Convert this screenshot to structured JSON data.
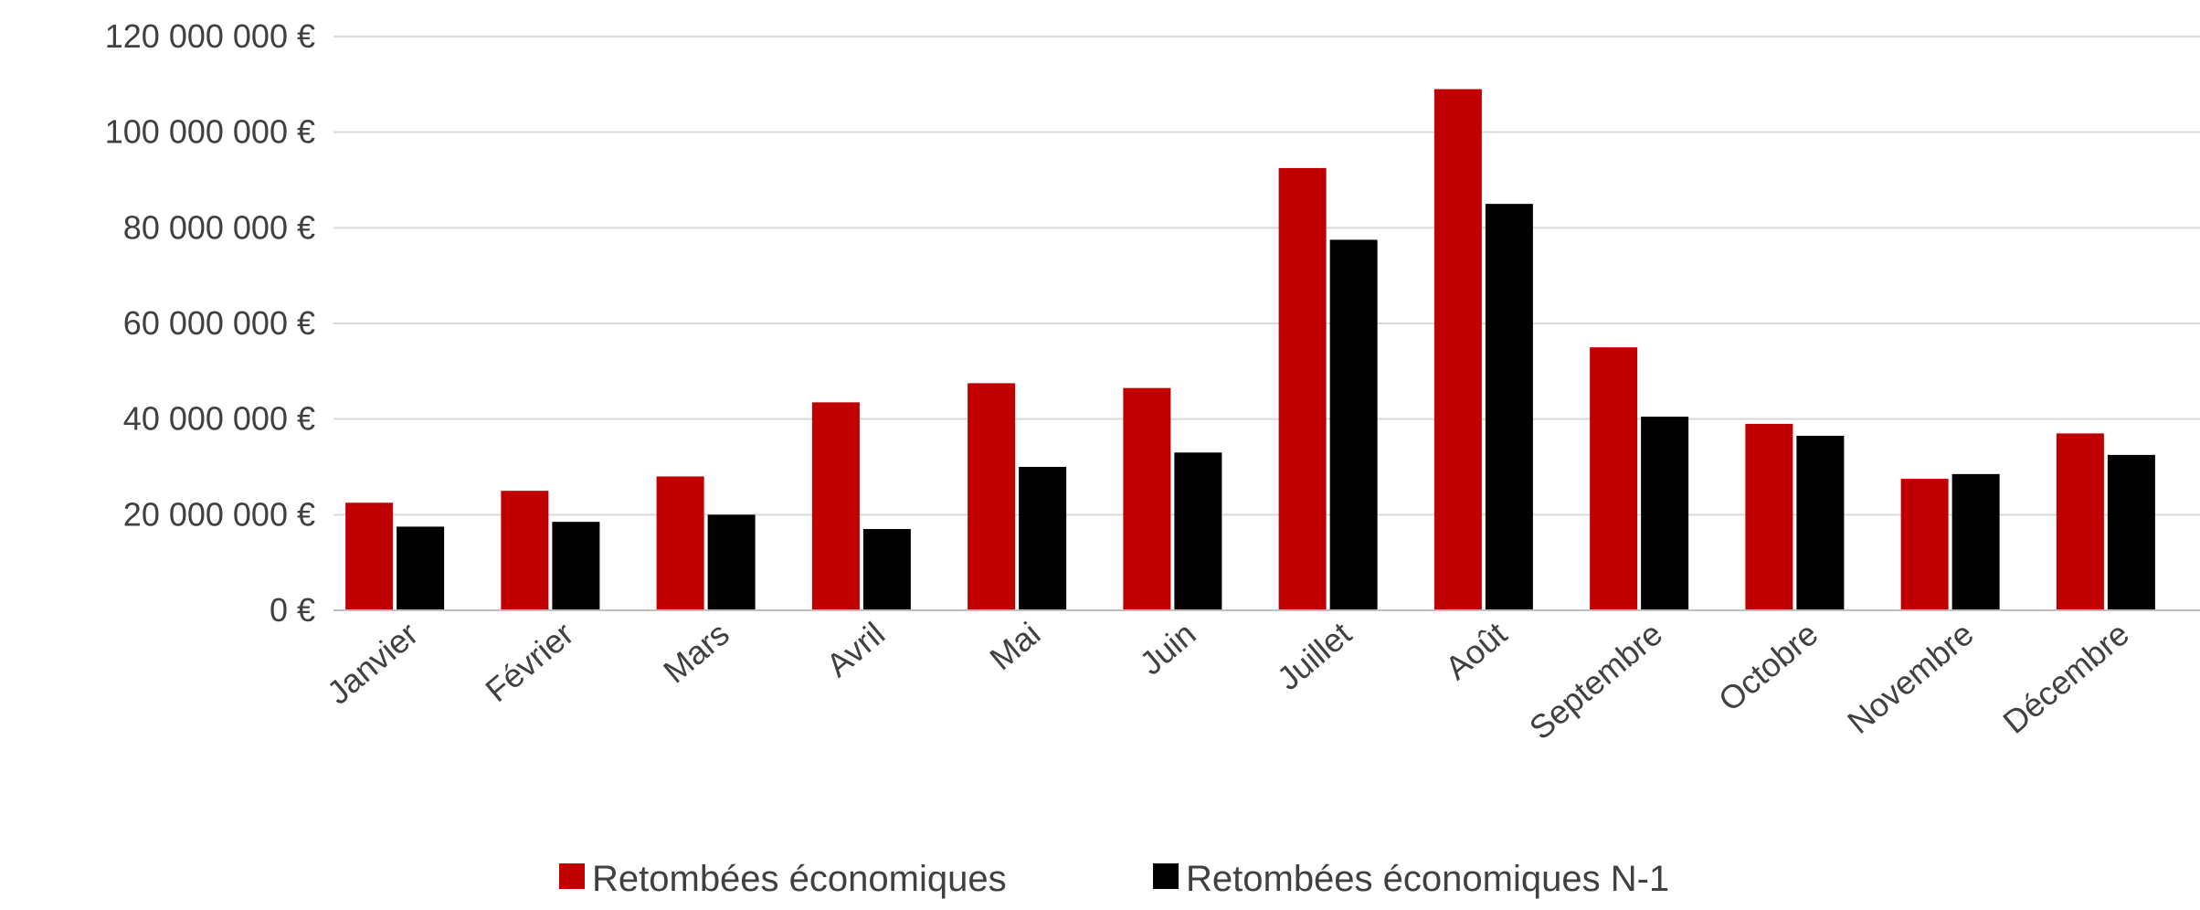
{
  "chart_data": {
    "type": "bar",
    "title": "",
    "xlabel": "",
    "ylabel": "",
    "categories": [
      "Janvier",
      "Février",
      "Mars",
      "Avril",
      "Mai",
      "Juin",
      "Juillet",
      "Août",
      "Septembre",
      "Octobre",
      "Novembre",
      "Décembre"
    ],
    "series": [
      {
        "name": "Retombées économiques",
        "color": "#c00000",
        "values": [
          22500000,
          25000000,
          28000000,
          43500000,
          47500000,
          46500000,
          92500000,
          109000000,
          55000000,
          39000000,
          27500000,
          37000000
        ]
      },
      {
        "name": "Retombées économiques N-1",
        "color": "#000000",
        "values": [
          17500000,
          18500000,
          20000000,
          17000000,
          30000000,
          33000000,
          77500000,
          85000000,
          40500000,
          36500000,
          28500000,
          32500000
        ]
      }
    ],
    "ylim": [
      0,
      120000000
    ],
    "y_ticks": [
      {
        "value": 0,
        "label": "0 €"
      },
      {
        "value": 20000000,
        "label": "20 000 000 €"
      },
      {
        "value": 40000000,
        "label": "40 000 000 €"
      },
      {
        "value": 60000000,
        "label": "60 000 000 €"
      },
      {
        "value": 80000000,
        "label": "80 000 000 €"
      },
      {
        "value": 100000000,
        "label": "100 000 000 €"
      },
      {
        "value": 120000000,
        "label": "120 000 000 €"
      }
    ],
    "grid": true,
    "legend_position": "bottom-center"
  }
}
